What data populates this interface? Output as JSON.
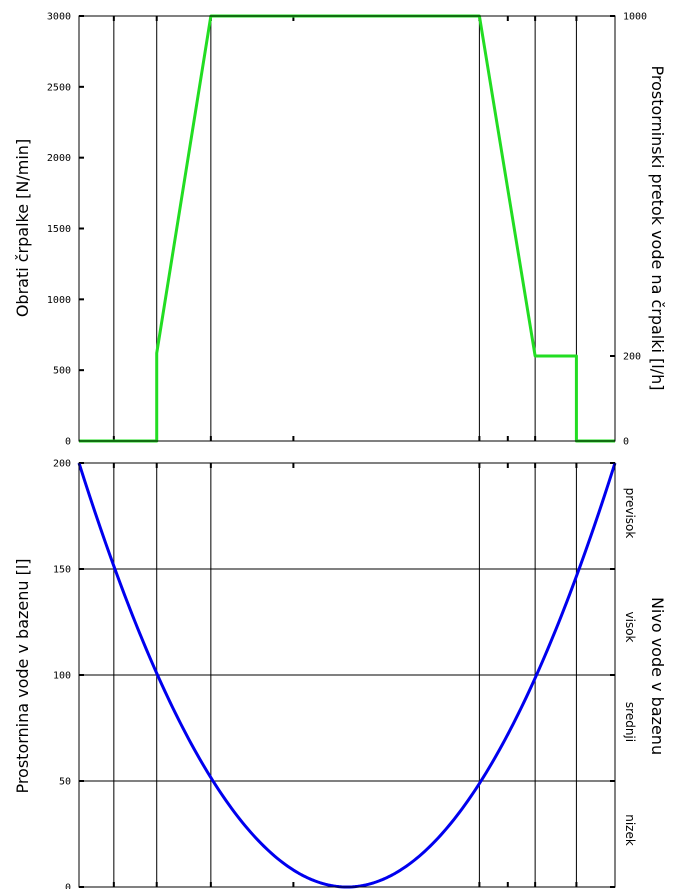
{
  "chart_data": [
    {
      "type": "line",
      "title": "",
      "xlabel": "",
      "ylabel": "Obrati črpalke [N/min]",
      "y2label": "Prostorninski pretok vode na črpalki [l/h]",
      "ylim": [
        0,
        3000
      ],
      "y2lim": [
        0,
        1000
      ],
      "xlim": [
        0,
        100
      ],
      "grid": "vertical lines only",
      "yticks": [
        0,
        500,
        1000,
        1500,
        2000,
        2500,
        3000
      ],
      "y2ticks": [
        0,
        200,
        1000
      ],
      "vlines": [
        6.5,
        14.5,
        24.6,
        74.7,
        85.1,
        92.8
      ],
      "xticks": [
        40,
        80
      ],
      "series": [
        {
          "color": "#22dd22",
          "x": [
            0,
            14.5,
            14.5,
            24.6,
            74.7,
            85.1,
            92.8,
            92.8,
            100
          ],
          "values": [
            0,
            0,
            620,
            3000,
            3000,
            600,
            600,
            0,
            0
          ]
        }
      ]
    },
    {
      "type": "line",
      "title": "",
      "xlabel": "",
      "ylabel": "Prostornina vode v bazenu [l]",
      "y2label": "Nivo vode v bazenu",
      "ylim": [
        0,
        200
      ],
      "xlim": [
        0,
        100
      ],
      "grid": "both",
      "yticks": [
        0,
        50,
        100,
        150,
        200
      ],
      "vlines": [
        6.5,
        14.5,
        24.6,
        74.7,
        85.1,
        92.8
      ],
      "xticks": [
        40,
        80
      ],
      "zones": [
        "previsok",
        "visok",
        "srednji",
        "nizek"
      ],
      "series": [
        {
          "color": "#0000ee",
          "x": [
            0,
            6.5,
            14.5,
            24.6,
            50,
            74.7,
            85.1,
            92.8,
            100
          ],
          "values": [
            200,
            150,
            100,
            50,
            0,
            50,
            100,
            150,
            200
          ]
        }
      ]
    }
  ]
}
